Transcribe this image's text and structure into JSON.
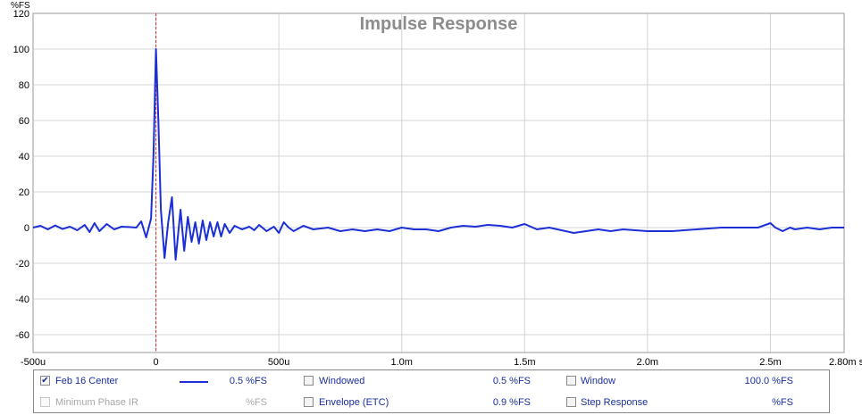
{
  "chart_data": {
    "type": "line",
    "title": "Impulse Response",
    "ylabel": "%FS",
    "xlabel": "",
    "xlim": [
      -0.0005,
      0.0028
    ],
    "ylim": [
      -70,
      120
    ],
    "x_ticks": [
      {
        "v": -0.0005,
        "label": "-500u"
      },
      {
        "v": 0,
        "label": "0"
      },
      {
        "v": 0.0005,
        "label": "500u"
      },
      {
        "v": 0.001,
        "label": "1.0m"
      },
      {
        "v": 0.0015,
        "label": "1.5m"
      },
      {
        "v": 0.002,
        "label": "2.0m"
      },
      {
        "v": 0.0025,
        "label": "2.5m"
      },
      {
        "v": 0.0028,
        "label": "2.80m s"
      }
    ],
    "y_ticks": [
      120,
      100,
      80,
      60,
      40,
      20,
      0,
      -20,
      -40,
      -60
    ],
    "grid": true,
    "marker_x": 0,
    "series": [
      {
        "name": "Feb 16 Center",
        "color": "#1c2fd6",
        "points": [
          [
            -0.0005,
            0.0
          ],
          [
            -0.00047,
            1.0
          ],
          [
            -0.00044,
            -1.0
          ],
          [
            -0.00041,
            1.2
          ],
          [
            -0.00038,
            -0.8
          ],
          [
            -0.00035,
            0.5
          ],
          [
            -0.00032,
            -1.5
          ],
          [
            -0.00029,
            1.5
          ],
          [
            -0.00027,
            -2.5
          ],
          [
            -0.00025,
            2.5
          ],
          [
            -0.00023,
            -2.0
          ],
          [
            -0.0002,
            2.0
          ],
          [
            -0.00017,
            -1.0
          ],
          [
            -0.00014,
            0.5
          ],
          [
            -0.00011,
            0.3
          ],
          [
            -8e-05,
            0.0
          ],
          [
            -6e-05,
            3.5
          ],
          [
            -4e-05,
            -5.5
          ],
          [
            -2e-05,
            5.0
          ],
          [
            -1e-05,
            40.0
          ],
          [
            0.0,
            100.0
          ],
          [
            1e-05,
            60.0
          ],
          [
            2e-05,
            10.0
          ],
          [
            3.5e-05,
            -17.0
          ],
          [
            5e-05,
            3.0
          ],
          [
            6.5e-05,
            17.0
          ],
          [
            8e-05,
            -18.0
          ],
          [
            0.0001,
            10.0
          ],
          [
            0.000115,
            -13.0
          ],
          [
            0.00013,
            6.0
          ],
          [
            0.000145,
            -8.0
          ],
          [
            0.00016,
            3.0
          ],
          [
            0.000175,
            -9.0
          ],
          [
            0.00019,
            4.0
          ],
          [
            0.000205,
            -7.0
          ],
          [
            0.00022,
            3.0
          ],
          [
            0.000235,
            -5.0
          ],
          [
            0.00025,
            3.0
          ],
          [
            0.000265,
            -5.0
          ],
          [
            0.00028,
            2.0
          ],
          [
            0.0003,
            -3.0
          ],
          [
            0.00032,
            1.0
          ],
          [
            0.00035,
            -1.0
          ],
          [
            0.00038,
            0.5
          ],
          [
            0.0004,
            -1.5
          ],
          [
            0.00042,
            1.5
          ],
          [
            0.00045,
            -2.0
          ],
          [
            0.00048,
            0.5
          ],
          [
            0.0005,
            -3.0
          ],
          [
            0.00052,
            3.0
          ],
          [
            0.00054,
            0.0
          ],
          [
            0.00056,
            -2.0
          ],
          [
            0.0006,
            1.0
          ],
          [
            0.00064,
            -1.0
          ],
          [
            0.0007,
            0.0
          ],
          [
            0.00075,
            -2.0
          ],
          [
            0.0008,
            -1.0
          ],
          [
            0.00085,
            -2.0
          ],
          [
            0.0009,
            -1.0
          ],
          [
            0.00095,
            -2.0
          ],
          [
            0.001,
            0.0
          ],
          [
            0.00105,
            -1.0
          ],
          [
            0.0011,
            -1.0
          ],
          [
            0.00115,
            -2.0
          ],
          [
            0.0012,
            0.0
          ],
          [
            0.00125,
            1.0
          ],
          [
            0.0013,
            0.5
          ],
          [
            0.00135,
            1.5
          ],
          [
            0.0014,
            1.0
          ],
          [
            0.00145,
            0.0
          ],
          [
            0.0015,
            2.0
          ],
          [
            0.00155,
            -1.0
          ],
          [
            0.0016,
            0.0
          ],
          [
            0.00165,
            -1.5
          ],
          [
            0.0017,
            -3.0
          ],
          [
            0.00175,
            -2.0
          ],
          [
            0.0018,
            -1.0
          ],
          [
            0.00185,
            -2.0
          ],
          [
            0.0019,
            -1.0
          ],
          [
            0.002,
            -2.0
          ],
          [
            0.0021,
            -2.0
          ],
          [
            0.0022,
            -1.0
          ],
          [
            0.0023,
            0.0
          ],
          [
            0.0024,
            0.0
          ],
          [
            0.00245,
            0.0
          ],
          [
            0.00248,
            1.5
          ],
          [
            0.0025,
            2.5
          ],
          [
            0.00252,
            0.0
          ],
          [
            0.00255,
            -2.0
          ],
          [
            0.00258,
            0.0
          ],
          [
            0.0026,
            -1.0
          ],
          [
            0.00265,
            0.0
          ],
          [
            0.0027,
            -1.0
          ],
          [
            0.00275,
            0.0
          ],
          [
            0.0028,
            0.0
          ]
        ]
      }
    ]
  },
  "legend": {
    "rows": [
      [
        {
          "label": "Feb 16 Center",
          "checked": true,
          "enabled": true,
          "swatch": true,
          "swatch_color": "#1c2fd6",
          "value": "0.5 %FS"
        },
        {
          "label": "Windowed",
          "checked": false,
          "enabled": true,
          "value": "0.5 %FS"
        },
        {
          "label": "Window",
          "checked": false,
          "enabled": true,
          "value": "100.0 %FS"
        }
      ],
      [
        {
          "label": "Minimum Phase IR",
          "checked": false,
          "enabled": false,
          "value": "%FS"
        },
        {
          "label": "Envelope (ETC)",
          "checked": false,
          "enabled": true,
          "value": "0.9 %FS"
        },
        {
          "label": "Step Response",
          "checked": false,
          "enabled": true,
          "value": "%FS"
        }
      ]
    ]
  }
}
